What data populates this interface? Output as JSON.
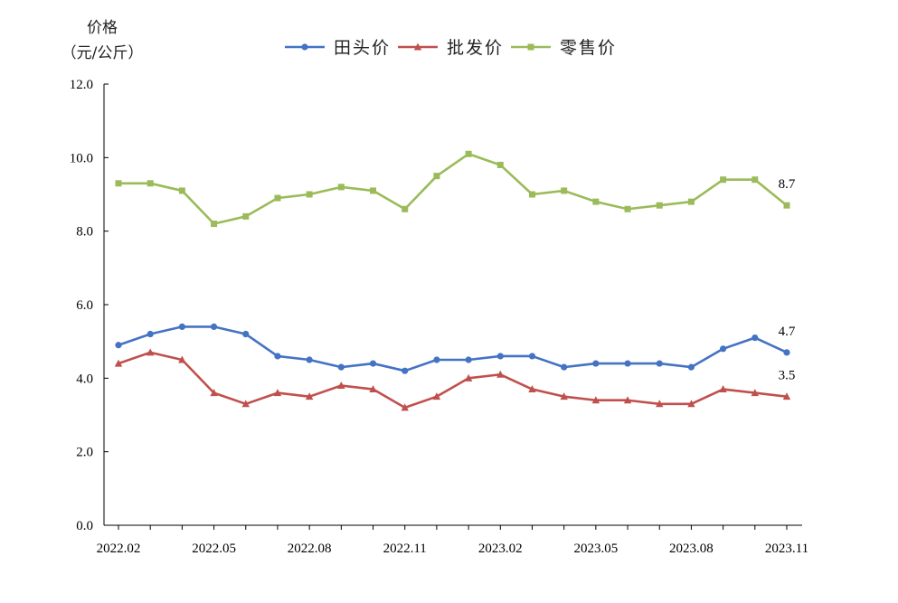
{
  "chart_data": {
    "type": "line",
    "ylabel_lines": [
      "价格",
      "（元/公斤）"
    ],
    "ylim": [
      0,
      12
    ],
    "yticks": [
      "0.0",
      "2.0",
      "4.0",
      "6.0",
      "8.0",
      "10.0",
      "12.0"
    ],
    "x": [
      "2022.02",
      "2022.03",
      "2022.04",
      "2022.05",
      "2022.06",
      "2022.07",
      "2022.08",
      "2022.09",
      "2022.10",
      "2022.11",
      "2022.12",
      "2023.01",
      "2023.02",
      "2023.03",
      "2023.04",
      "2023.05",
      "2023.06",
      "2023.07",
      "2023.08",
      "2023.09",
      "2023.10",
      "2023.11"
    ],
    "xtick_labels": [
      "2022.02",
      "2022.05",
      "2022.08",
      "2022.11",
      "2023.02",
      "2023.05",
      "2023.08",
      "2023.11"
    ],
    "grid": false,
    "legend_position": "top",
    "series": [
      {
        "name": "田头价",
        "color": "#4472C4",
        "marker": "circle",
        "values": [
          4.9,
          5.2,
          5.4,
          5.4,
          5.2,
          4.6,
          4.5,
          4.3,
          4.4,
          4.2,
          4.5,
          4.5,
          4.6,
          4.6,
          4.3,
          4.4,
          4.4,
          4.4,
          4.3,
          4.8,
          5.1,
          4.7
        ],
        "end_label": "4.7"
      },
      {
        "name": "批发价",
        "color": "#C0504D",
        "marker": "triangle",
        "values": [
          4.4,
          4.7,
          4.5,
          3.6,
          3.3,
          3.6,
          3.5,
          3.8,
          3.7,
          3.2,
          3.5,
          4.0,
          4.1,
          3.7,
          3.5,
          3.4,
          3.4,
          3.3,
          3.3,
          3.7,
          3.6,
          3.5
        ],
        "end_label": "3.5"
      },
      {
        "name": "零售价",
        "color": "#9BBB59",
        "marker": "square",
        "values": [
          9.3,
          9.3,
          9.1,
          8.2,
          8.4,
          8.9,
          9.0,
          9.2,
          9.1,
          8.6,
          9.5,
          10.1,
          9.8,
          9.0,
          9.1,
          8.8,
          8.6,
          8.7,
          8.8,
          9.4,
          9.4,
          8.7
        ],
        "end_label": "8.7"
      }
    ]
  }
}
